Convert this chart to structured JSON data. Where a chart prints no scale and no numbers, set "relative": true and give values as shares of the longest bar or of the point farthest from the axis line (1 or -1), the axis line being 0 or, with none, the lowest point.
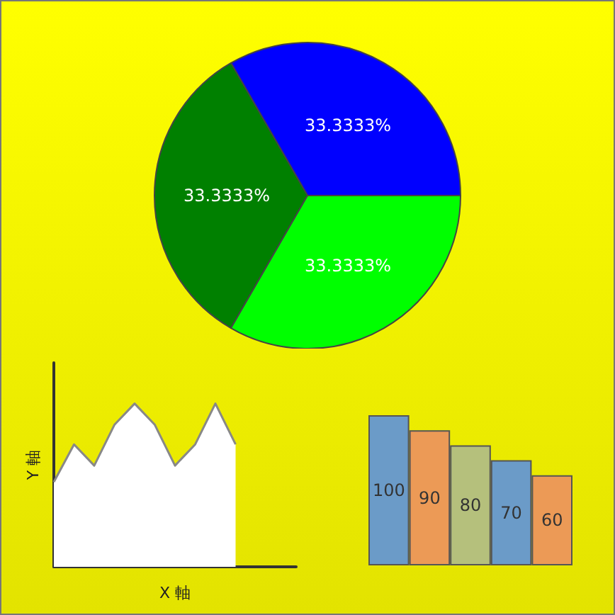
{
  "chart_data": [
    {
      "type": "pie",
      "categories": [
        null,
        null,
        null
      ],
      "values": [
        33.3333,
        33.3333,
        33.3333
      ],
      "colors": [
        "#0000ff",
        "#008000",
        "#00ff00"
      ],
      "value_labels": [
        "33.3333%",
        "33.3333%",
        "33.3333%"
      ]
    },
    {
      "type": "area",
      "relative": true,
      "xlabel": "X 軸",
      "ylabel": "Y 軸",
      "categories": [
        null,
        null,
        null,
        null,
        null,
        null,
        null,
        null,
        null,
        null
      ],
      "series": [
        {
          "color": "#ffffff",
          "values": [
            0.52,
            0.75,
            0.62,
            0.87,
            1,
            0.87,
            0.62,
            0.75,
            1,
            0.75
          ]
        }
      ]
    },
    {
      "type": "bar",
      "categories": [
        null,
        null,
        null,
        null,
        null
      ],
      "values": [
        100,
        90,
        80,
        70,
        60
      ],
      "colors": [
        "#6b9bc8",
        "#ec9a56",
        "#b5c07c",
        "#6b9bc8",
        "#ec9a56"
      ],
      "data_labels": true
    }
  ]
}
